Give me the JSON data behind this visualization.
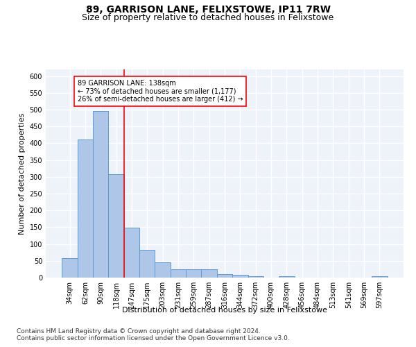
{
  "title": "89, GARRISON LANE, FELIXSTOWE, IP11 7RW",
  "subtitle": "Size of property relative to detached houses in Felixstowe",
  "xlabel": "Distribution of detached houses by size in Felixstowe",
  "ylabel": "Number of detached properties",
  "bin_labels": [
    "34sqm",
    "62sqm",
    "90sqm",
    "118sqm",
    "147sqm",
    "175sqm",
    "203sqm",
    "231sqm",
    "259sqm",
    "287sqm",
    "316sqm",
    "344sqm",
    "372sqm",
    "400sqm",
    "428sqm",
    "456sqm",
    "484sqm",
    "513sqm",
    "541sqm",
    "569sqm",
    "597sqm"
  ],
  "bar_heights": [
    58,
    412,
    495,
    307,
    149,
    82,
    46,
    25,
    25,
    25,
    10,
    8,
    5,
    0,
    5,
    0,
    0,
    0,
    0,
    0,
    5
  ],
  "bar_color": "#aec6e8",
  "bar_edge_color": "#5b9bd5",
  "property_line_x": 3.5,
  "property_line_color": "red",
  "annotation_line1": "89 GARRISON LANE: 138sqm",
  "annotation_line2": "← 73% of detached houses are smaller (1,177)",
  "annotation_line3": "26% of semi-detached houses are larger (412) →",
  "ylim": [
    0,
    620
  ],
  "yticks": [
    0,
    50,
    100,
    150,
    200,
    250,
    300,
    350,
    400,
    450,
    500,
    550,
    600
  ],
  "footnote1": "Contains HM Land Registry data © Crown copyright and database right 2024.",
  "footnote2": "Contains public sector information licensed under the Open Government Licence v3.0.",
  "background_color": "#eef2f9",
  "grid_color": "#ffffff",
  "title_fontsize": 10,
  "subtitle_fontsize": 9,
  "axis_label_fontsize": 8,
  "tick_fontsize": 7,
  "annotation_fontsize": 7,
  "footnote_fontsize": 6.5
}
